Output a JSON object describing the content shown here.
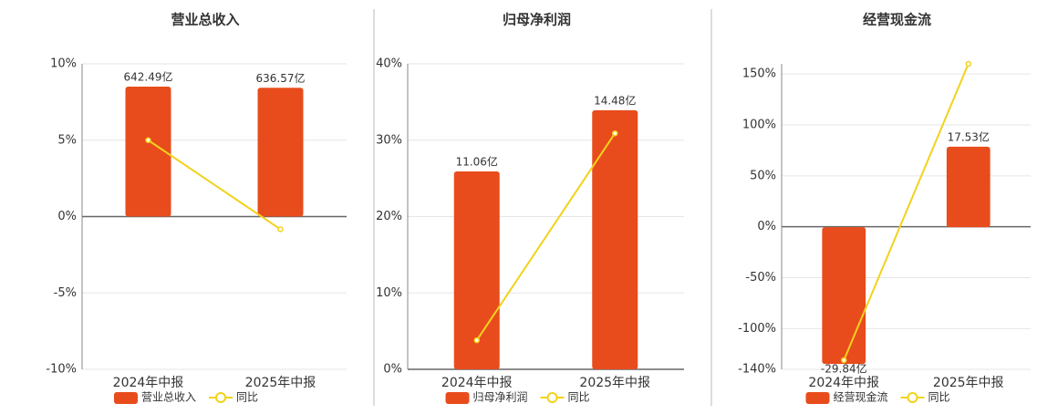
{
  "chart_data": [
    {
      "type": "bar-line",
      "title": "营业总收入",
      "categories": [
        "2024年中报",
        "2025年中报"
      ],
      "series": [
        {
          "name": "营业总收入",
          "color": "#e84c1c",
          "axis": "y2",
          "values": [
            642.49,
            636.57
          ],
          "value_labels": [
            "642.49亿",
            "636.57亿"
          ]
        },
        {
          "name": "同比",
          "color": "#f2d21c",
          "type": "line",
          "values": [
            5.0,
            -0.83
          ]
        }
      ],
      "ylim": [
        -10,
        10
      ],
      "yticks": [
        {
          "value": -10,
          "label": "-10%"
        },
        {
          "value": -5,
          "label": "-5%"
        },
        {
          "value": 0,
          "label": "0%"
        },
        {
          "value": 5,
          "label": "5%"
        },
        {
          "value": 10,
          "label": "10%"
        }
      ],
      "y2lim": [
        -755,
        755
      ],
      "grid": true
    },
    {
      "type": "bar-line",
      "title": "归母净利润",
      "categories": [
        "2024年中报",
        "2025年中报"
      ],
      "series": [
        {
          "name": "归母净利润",
          "color": "#e84c1c",
          "axis": "y2",
          "values": [
            11.06,
            14.48
          ],
          "value_labels": [
            "11.06亿",
            "14.48亿"
          ]
        },
        {
          "name": "同比",
          "color": "#f2d21c",
          "type": "line",
          "values": [
            3.8,
            30.9
          ]
        }
      ],
      "ylim": [
        0,
        40
      ],
      "yticks": [
        {
          "value": 0,
          "label": "0%"
        },
        {
          "value": 10,
          "label": "10%"
        },
        {
          "value": 20,
          "label": "20%"
        },
        {
          "value": 30,
          "label": "30%"
        },
        {
          "value": 40,
          "label": "40%"
        }
      ],
      "y2lim": [
        0,
        17.07
      ],
      "grid": true
    },
    {
      "type": "bar-line",
      "title": "经营现金流",
      "categories": [
        "2024年中报",
        "2025年中报"
      ],
      "series": [
        {
          "name": "经营现金流",
          "color": "#e84c1c",
          "axis": "y2",
          "values": [
            -29.84,
            17.53
          ],
          "value_labels": [
            "-29.84亿",
            "17.53亿"
          ]
        },
        {
          "name": "同比",
          "color": "#f2d21c",
          "type": "line",
          "values": [
            -131,
            160
          ]
        }
      ],
      "ylim": [
        -140,
        160
      ],
      "yticks": [
        {
          "value": -140,
          "label": "-140%"
        },
        {
          "value": -100,
          "label": "-100%"
        },
        {
          "value": -50,
          "label": "-50%"
        },
        {
          "value": 0,
          "label": "0%"
        },
        {
          "value": 50,
          "label": "50%"
        },
        {
          "value": 100,
          "label": "100%"
        },
        {
          "value": 150,
          "label": "150%"
        }
      ],
      "y2lim": [
        -31,
        35.6
      ],
      "grid": true
    }
  ]
}
